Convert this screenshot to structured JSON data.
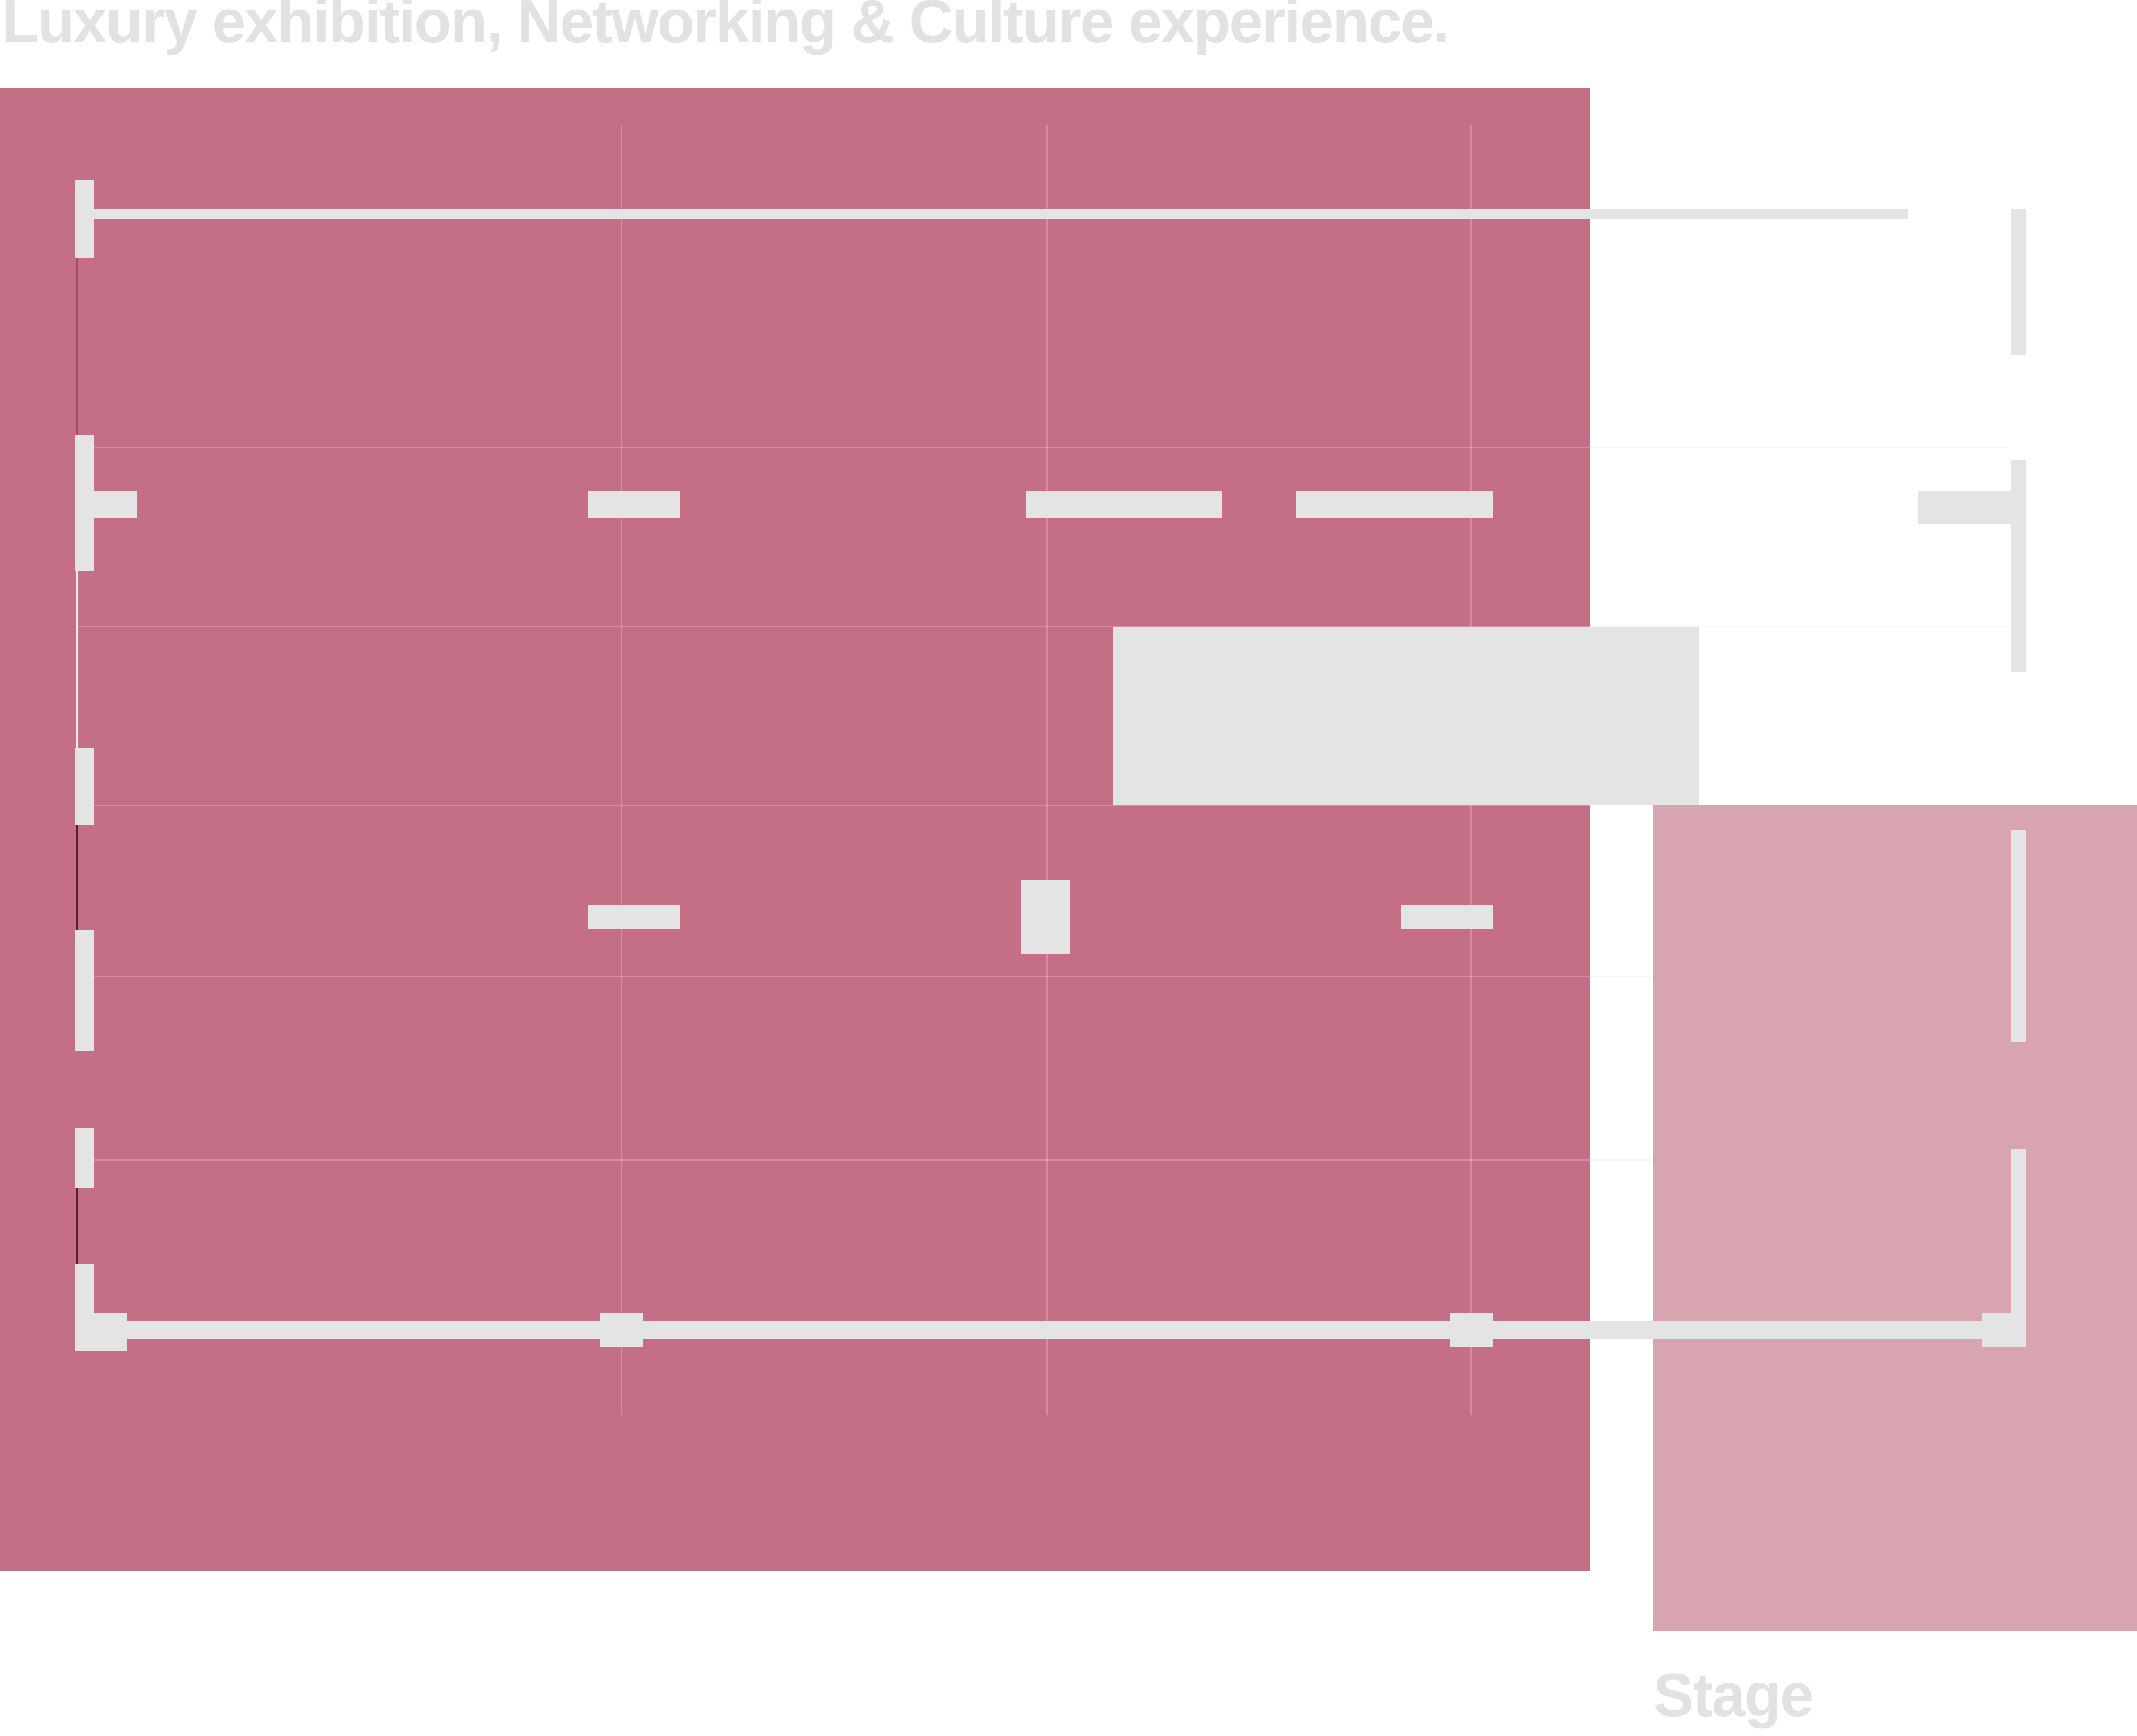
{
  "header": {
    "title": "Luxury exhibition, Networking & Culture experience."
  },
  "zones": {
    "stage_label": "Stage"
  },
  "colors": {
    "main_zone": "#c46f86",
    "stage_zone": "#d8a4b0",
    "walls": "#e4e4e4",
    "text": "#e2e2e2",
    "background": "#ffffff"
  }
}
